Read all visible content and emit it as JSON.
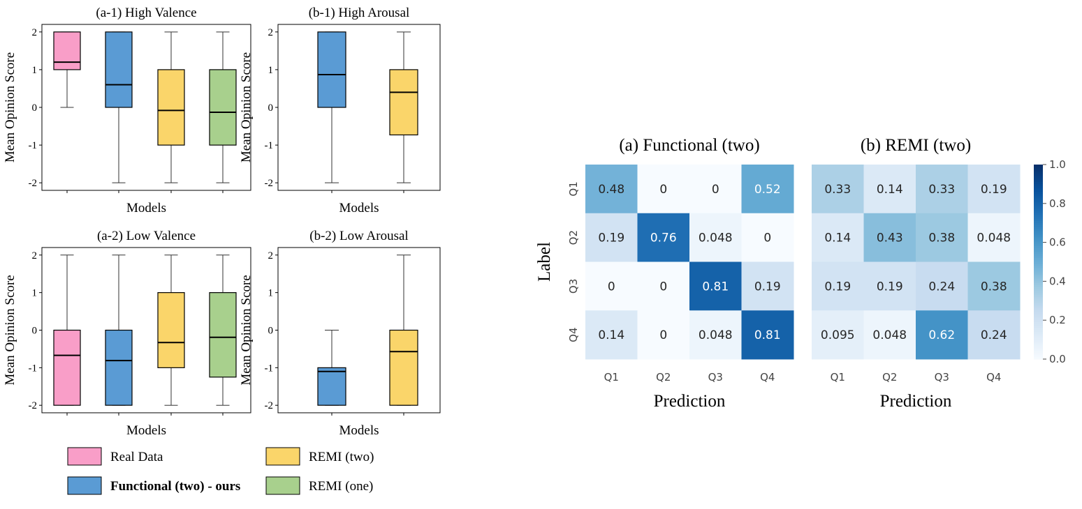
{
  "box_panels": [
    {
      "title": "(a-1) High Valence",
      "ylabel": "Mean Opinion Score",
      "xlabel": "Models",
      "ylim": [
        -2.2,
        2.2
      ],
      "yticks": [
        2,
        1,
        0,
        -1,
        -2
      ],
      "boxes": [
        {
          "series": "real",
          "whislo": 0,
          "q1": 1,
          "med": 1.2,
          "q3": 2,
          "whishi": 2
        },
        {
          "series": "functional",
          "whislo": -2,
          "q1": 0,
          "med": 0.6,
          "q3": 2,
          "whishi": 2
        },
        {
          "series": "remi_two",
          "whislo": -2,
          "q1": -1,
          "med": -0.08,
          "q3": 1,
          "whishi": 2
        },
        {
          "series": "remi_one",
          "whislo": -2,
          "q1": -1,
          "med": -0.13,
          "q3": 1,
          "whishi": 2
        }
      ]
    },
    {
      "title": "(b-1) High Arousal",
      "ylabel": "Mean Opinion Score",
      "xlabel": "Models",
      "ylim": [
        -2.2,
        2.2
      ],
      "yticks": [
        2,
        1,
        0,
        -1,
        -2
      ],
      "boxes": [
        {
          "series": "functional",
          "whislo": -2,
          "q1": 0,
          "med": 0.87,
          "q3": 2,
          "whishi": 2
        },
        {
          "series": "remi_two",
          "whislo": -2,
          "q1": -0.73,
          "med": 0.4,
          "q3": 1,
          "whishi": 2
        }
      ]
    },
    {
      "title": "(a-2) Low Valence",
      "ylabel": "Mean Opinion Score",
      "xlabel": "Models",
      "ylim": [
        -2.2,
        2.2
      ],
      "yticks": [
        2,
        1,
        0,
        -1,
        -2
      ],
      "boxes": [
        {
          "series": "real",
          "whislo": -2,
          "q1": -2,
          "med": -0.67,
          "q3": 0,
          "whishi": 2
        },
        {
          "series": "functional",
          "whislo": -2,
          "q1": -2,
          "med": -0.81,
          "q3": 0,
          "whishi": 2
        },
        {
          "series": "remi_two",
          "whislo": -2,
          "q1": -1,
          "med": -0.33,
          "q3": 1,
          "whishi": 2
        },
        {
          "series": "remi_one",
          "whislo": -2,
          "q1": -1.25,
          "med": -0.19,
          "q3": 1,
          "whishi": 2
        }
      ]
    },
    {
      "title": "(b-2) Low Arousal",
      "ylabel": "Mean Opinion Score",
      "xlabel": "Models",
      "ylim": [
        -2.2,
        2.2
      ],
      "yticks": [
        2,
        1,
        0,
        -1,
        -2
      ],
      "boxes": [
        {
          "series": "functional",
          "whislo": -2,
          "q1": -2,
          "med": -1.1,
          "q3": -1,
          "whishi": 0
        },
        {
          "series": "remi_two",
          "whislo": -2,
          "q1": -2,
          "med": -0.57,
          "q3": 0,
          "whishi": 2
        }
      ]
    }
  ],
  "legend": [
    {
      "key": "real",
      "label": "Real Data",
      "color": "#f99ec8",
      "bold": false
    },
    {
      "key": "remi_two",
      "label": "REMI (two)",
      "color": "#fad56a",
      "bold": false
    },
    {
      "key": "functional",
      "label": "Functional (two) - ours",
      "color": "#5a9bd4",
      "bold": true
    },
    {
      "key": "remi_one",
      "label": "REMI (one)",
      "color": "#a8d08d",
      "bold": false
    }
  ],
  "chart_data": [
    {
      "type": "heatmap",
      "title": "(a) Functional (two)",
      "xlabel": "Prediction",
      "ylabel": "Label",
      "x": [
        "Q1",
        "Q2",
        "Q3",
        "Q4"
      ],
      "y": [
        "Q1",
        "Q2",
        "Q3",
        "Q4"
      ],
      "values": [
        [
          0.48,
          0,
          0,
          0.52
        ],
        [
          0.19,
          0.76,
          0.048,
          0
        ],
        [
          0,
          0,
          0.81,
          0.19
        ],
        [
          0.14,
          0,
          0.048,
          0.81
        ]
      ],
      "labels": [
        [
          "0.48",
          "0",
          "0",
          "0.52"
        ],
        [
          "0.19",
          "0.76",
          "0.048",
          "0"
        ],
        [
          "0",
          "0",
          "0.81",
          "0.19"
        ],
        [
          "0.14",
          "0",
          "0.048",
          "0.81"
        ]
      ]
    },
    {
      "type": "heatmap",
      "title": "(b) REMI (two)",
      "xlabel": "Prediction",
      "x": [
        "Q1",
        "Q2",
        "Q3",
        "Q4"
      ],
      "y": [
        "Q1",
        "Q2",
        "Q3",
        "Q4"
      ],
      "values": [
        [
          0.33,
          0.14,
          0.33,
          0.19
        ],
        [
          0.14,
          0.43,
          0.38,
          0.048
        ],
        [
          0.19,
          0.19,
          0.24,
          0.38
        ],
        [
          0.095,
          0.048,
          0.62,
          0.24
        ]
      ],
      "labels": [
        [
          "0.33",
          "0.14",
          "0.33",
          "0.19"
        ],
        [
          "0.14",
          "0.43",
          "0.38",
          "0.048"
        ],
        [
          "0.19",
          "0.19",
          "0.24",
          "0.38"
        ],
        [
          "0.095",
          "0.048",
          "0.62",
          "0.24"
        ]
      ],
      "colorbar": {
        "range": [
          0,
          1
        ],
        "ticks": [
          "0.0",
          "0.2",
          "0.4",
          "0.6",
          "0.8",
          "1.0"
        ],
        "colormap": "Blues"
      }
    }
  ]
}
